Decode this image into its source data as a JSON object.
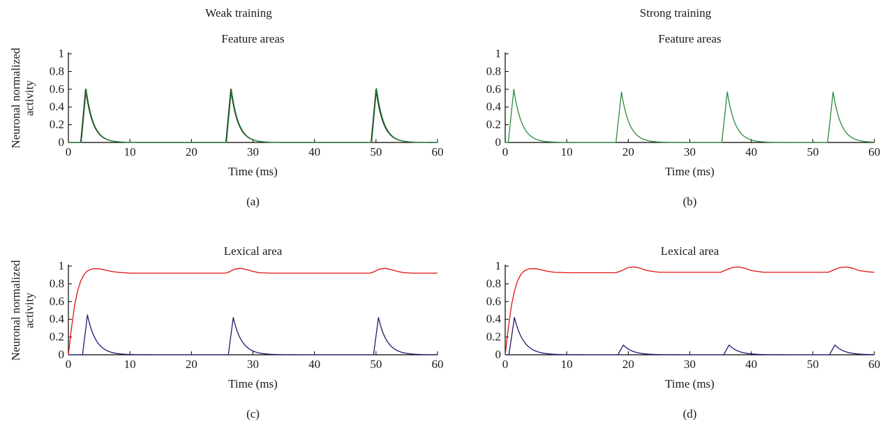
{
  "figure": {
    "column_titles": [
      "Weak training",
      "Strong training"
    ],
    "ylabel_lines": [
      "Neuronal normalized",
      "activity"
    ],
    "colors": {
      "green_trace": "#2a8a3a",
      "black_trace": "#111111",
      "red_trace": "#e01010",
      "blue_trace": "#1a1a6e"
    }
  },
  "chart_data": [
    {
      "id": "a",
      "tag": "(a)",
      "type": "line",
      "title": "Feature areas",
      "xlabel": "Time (ms)",
      "ylabel": "Neuronal normalized activity",
      "xlim": [
        0,
        60
      ],
      "ylim": [
        0,
        1
      ],
      "xticks": [
        0,
        10,
        20,
        30,
        40,
        50,
        60
      ],
      "yticks": [
        0,
        0.2,
        0.4,
        0.6,
        0.8,
        1
      ],
      "series": [
        {
          "color": "#111111",
          "pulse_onsets_ms": [
            2.0,
            25.6,
            49.2
          ],
          "peaks": [
            0.6,
            0.6,
            0.6
          ],
          "rise_ms": 0.8,
          "decay_tau_ms": 1.2
        },
        {
          "color": "#2a8a3a",
          "pulse_onsets_ms": [
            2.1,
            25.7,
            49.3
          ],
          "peaks": [
            0.6,
            0.6,
            0.61
          ],
          "rise_ms": 0.8,
          "decay_tau_ms": 1.2
        }
      ]
    },
    {
      "id": "b",
      "tag": "(b)",
      "type": "line",
      "title": "Feature areas",
      "xlabel": "Time (ms)",
      "ylabel": "",
      "xlim": [
        0,
        60
      ],
      "ylim": [
        0,
        1
      ],
      "xticks": [
        0,
        10,
        20,
        30,
        40,
        50,
        60
      ],
      "yticks": [
        0,
        0.2,
        0.4,
        0.6,
        0.8,
        1
      ],
      "series": [
        {
          "color": "#2a8a3a",
          "pulse_onsets_ms": [
            0.5,
            18.0,
            35.2,
            52.4
          ],
          "peaks": [
            0.6,
            0.57,
            0.57,
            0.57
          ],
          "rise_ms": 0.9,
          "decay_tau_ms": 1.3
        }
      ]
    },
    {
      "id": "c",
      "tag": "(c)",
      "type": "line",
      "title": "Lexical area",
      "xlabel": "Time (ms)",
      "ylabel": "Neuronal normalized activity",
      "xlim": [
        0,
        60
      ],
      "ylim": [
        0,
        1
      ],
      "xticks": [
        0,
        10,
        20,
        30,
        40,
        50,
        60
      ],
      "yticks": [
        0,
        0.2,
        0.4,
        0.6,
        0.8,
        1
      ],
      "series": [
        {
          "color": "#e01010",
          "points": [
            [
              0,
              0
            ],
            [
              0.5,
              0.3
            ],
            [
              1,
              0.55
            ],
            [
              1.5,
              0.72
            ],
            [
              2,
              0.83
            ],
            [
              2.5,
              0.9
            ],
            [
              3,
              0.94
            ],
            [
              3.5,
              0.96
            ],
            [
              4,
              0.97
            ],
            [
              5,
              0.97
            ],
            [
              6,
              0.955
            ],
            [
              7,
              0.94
            ],
            [
              8,
              0.93
            ],
            [
              10,
              0.92
            ],
            [
              20,
              0.92
            ],
            [
              25.5,
              0.92
            ],
            [
              26,
              0.93
            ],
            [
              27,
              0.965
            ],
            [
              28,
              0.975
            ],
            [
              29,
              0.96
            ],
            [
              30,
              0.94
            ],
            [
              31,
              0.925
            ],
            [
              33,
              0.92
            ],
            [
              49,
              0.92
            ],
            [
              49.5,
              0.93
            ],
            [
              50.5,
              0.965
            ],
            [
              51.5,
              0.975
            ],
            [
              52.5,
              0.96
            ],
            [
              53.5,
              0.94
            ],
            [
              54.5,
              0.925
            ],
            [
              56,
              0.92
            ],
            [
              60,
              0.92
            ]
          ]
        },
        {
          "color": "#1a1a6e",
          "pulse_onsets_ms": [
            2.3,
            26.0,
            49.6
          ],
          "peaks": [
            0.45,
            0.42,
            0.42
          ],
          "rise_ms": 0.8,
          "decay_tau_ms": 1.4
        }
      ]
    },
    {
      "id": "d",
      "tag": "(d)",
      "type": "line",
      "title": "Lexical area",
      "xlabel": "Time (ms)",
      "ylabel": "",
      "xlim": [
        0,
        60
      ],
      "ylim": [
        0,
        1
      ],
      "xticks": [
        0,
        10,
        20,
        30,
        40,
        50,
        60
      ],
      "yticks": [
        0,
        0.2,
        0.4,
        0.6,
        0.8,
        1
      ],
      "series": [
        {
          "color": "#e01010",
          "points": [
            [
              0,
              0
            ],
            [
              0.5,
              0.3
            ],
            [
              1,
              0.55
            ],
            [
              1.5,
              0.72
            ],
            [
              2,
              0.83
            ],
            [
              2.5,
              0.9
            ],
            [
              3,
              0.94
            ],
            [
              3.5,
              0.96
            ],
            [
              4,
              0.97
            ],
            [
              5,
              0.97
            ],
            [
              6,
              0.955
            ],
            [
              7,
              0.94
            ],
            [
              8,
              0.93
            ],
            [
              10,
              0.925
            ],
            [
              18,
              0.925
            ],
            [
              19,
              0.95
            ],
            [
              20,
              0.985
            ],
            [
              21,
              0.99
            ],
            [
              22,
              0.975
            ],
            [
              23,
              0.95
            ],
            [
              25,
              0.93
            ],
            [
              35,
              0.93
            ],
            [
              36,
              0.96
            ],
            [
              37,
              0.985
            ],
            [
              38,
              0.99
            ],
            [
              39,
              0.975
            ],
            [
              40,
              0.95
            ],
            [
              42,
              0.93
            ],
            [
              52.5,
              0.93
            ],
            [
              53.5,
              0.96
            ],
            [
              54.5,
              0.985
            ],
            [
              55.5,
              0.99
            ],
            [
              56.5,
              0.975
            ],
            [
              57.5,
              0.95
            ],
            [
              59,
              0.935
            ],
            [
              60,
              0.93
            ]
          ]
        },
        {
          "color": "#1a1a6e",
          "pulse_onsets_ms": [
            0.6,
            18.3,
            35.5,
            52.7
          ],
          "peaks": [
            0.42,
            0.11,
            0.11,
            0.11
          ],
          "rise_ms": 0.9,
          "decay_tau_ms": 1.5
        }
      ]
    }
  ]
}
